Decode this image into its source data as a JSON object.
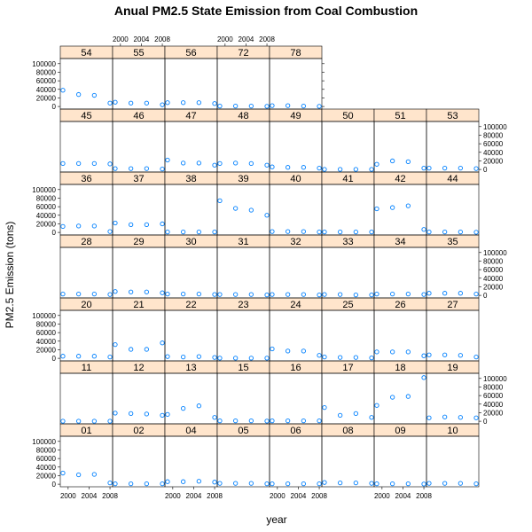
{
  "chart_data": {
    "type": "scatter",
    "title": "Anual PM2.5 State Emission from Coal Combustion",
    "xlabel": "year",
    "ylabel": "PM2.5 Emission (tons)",
    "x": [
      1999,
      2002,
      2005,
      2008
    ],
    "x_ticks": [
      2000,
      2004,
      2008
    ],
    "xlim": [
      1998.5,
      2008.5
    ],
    "y_ticks": [
      0,
      20000,
      40000,
      60000,
      80000,
      100000
    ],
    "ylim": [
      -6000,
      112000
    ],
    "colors": {
      "point": "#0080ff",
      "strip": "#ffe5cc"
    },
    "panels": [
      {
        "name": "01",
        "values": [
          26000,
          22000,
          23000,
          3000
        ]
      },
      {
        "name": "02",
        "values": [
          1000,
          1000,
          1000,
          1000
        ]
      },
      {
        "name": "04",
        "values": [
          6000,
          6000,
          7000,
          5000
        ]
      },
      {
        "name": "05",
        "values": [
          2000,
          2000,
          2000,
          1000
        ]
      },
      {
        "name": "06",
        "values": [
          1000,
          1000,
          1000,
          1000
        ]
      },
      {
        "name": "08",
        "values": [
          4000,
          3000,
          3000,
          2000
        ]
      },
      {
        "name": "09",
        "values": [
          1000,
          1000,
          1000,
          500
        ]
      },
      {
        "name": "10",
        "values": [
          2000,
          2000,
          2000,
          1000
        ]
      },
      {
        "name": "11",
        "values": [
          100,
          100,
          100,
          100
        ]
      },
      {
        "name": "12",
        "values": [
          19000,
          18000,
          17000,
          14000
        ]
      },
      {
        "name": "13",
        "values": [
          16000,
          30000,
          36000,
          9000
        ]
      },
      {
        "name": "15",
        "values": [
          1000,
          1000,
          1000,
          500
        ]
      },
      {
        "name": "16",
        "values": [
          1000,
          1000,
          1000,
          1000
        ]
      },
      {
        "name": "17",
        "values": [
          32000,
          14000,
          18000,
          9000
        ]
      },
      {
        "name": "18",
        "values": [
          37000,
          56000,
          58000,
          102000
        ]
      },
      {
        "name": "19",
        "values": [
          8000,
          10000,
          9000,
          8000
        ]
      },
      {
        "name": "20",
        "values": [
          5000,
          5000,
          5000,
          3000
        ]
      },
      {
        "name": "21",
        "values": [
          32000,
          21000,
          21000,
          36000
        ]
      },
      {
        "name": "22",
        "values": [
          4000,
          3000,
          4000,
          2000
        ]
      },
      {
        "name": "23",
        "values": [
          500,
          500,
          500,
          500
        ]
      },
      {
        "name": "24",
        "values": [
          22000,
          17000,
          17000,
          7000
        ]
      },
      {
        "name": "25",
        "values": [
          3000,
          2000,
          2000,
          1000
        ]
      },
      {
        "name": "26",
        "values": [
          15000,
          15000,
          15000,
          6000
        ]
      },
      {
        "name": "27",
        "values": [
          8000,
          8000,
          7000,
          3000
        ]
      },
      {
        "name": "28",
        "values": [
          3000,
          3000,
          3000,
          2000
        ]
      },
      {
        "name": "29",
        "values": [
          9000,
          8000,
          8000,
          6000
        ]
      },
      {
        "name": "30",
        "values": [
          3000,
          3000,
          3000,
          2000
        ]
      },
      {
        "name": "31",
        "values": [
          2000,
          2000,
          2000,
          1000
        ]
      },
      {
        "name": "32",
        "values": [
          2000,
          2000,
          2000,
          1000
        ]
      },
      {
        "name": "33",
        "values": [
          2000,
          2000,
          1000,
          1000
        ]
      },
      {
        "name": "34",
        "values": [
          3000,
          3000,
          3000,
          2000
        ]
      },
      {
        "name": "35",
        "values": [
          5000,
          5000,
          5000,
          3000
        ]
      },
      {
        "name": "36",
        "values": [
          14000,
          15000,
          15000,
          2000
        ]
      },
      {
        "name": "37",
        "values": [
          22000,
          18000,
          18000,
          20000
        ]
      },
      {
        "name": "38",
        "values": [
          1000,
          1000,
          1000,
          1000
        ]
      },
      {
        "name": "39",
        "values": [
          74000,
          56000,
          52000,
          40000
        ]
      },
      {
        "name": "40",
        "values": [
          2000,
          2000,
          2000,
          1000
        ]
      },
      {
        "name": "41",
        "values": [
          1000,
          1000,
          1000,
          1000
        ]
      },
      {
        "name": "42",
        "values": [
          55000,
          58000,
          62000,
          7000
        ]
      },
      {
        "name": "44",
        "values": [
          1000,
          1000,
          1000,
          500
        ]
      },
      {
        "name": "45",
        "values": [
          14000,
          14000,
          14000,
          13000
        ]
      },
      {
        "name": "46",
        "values": [
          2000,
          2000,
          2000,
          1000
        ]
      },
      {
        "name": "47",
        "values": [
          22000,
          15000,
          15000,
          10000
        ]
      },
      {
        "name": "48",
        "values": [
          14000,
          15000,
          14000,
          10000
        ]
      },
      {
        "name": "49",
        "values": [
          6000,
          5000,
          5000,
          3000
        ]
      },
      {
        "name": "50",
        "values": [
          100,
          100,
          100,
          100
        ]
      },
      {
        "name": "51",
        "values": [
          12000,
          20000,
          18000,
          3000
        ]
      },
      {
        "name": "53",
        "values": [
          3000,
          3000,
          3000,
          2000
        ]
      },
      {
        "name": "54",
        "values": [
          38000,
          28000,
          26000,
          8000
        ]
      },
      {
        "name": "55",
        "values": [
          10000,
          8000,
          8000,
          4000
        ]
      },
      {
        "name": "56",
        "values": [
          9000,
          9000,
          9000,
          7000
        ]
      },
      {
        "name": "72",
        "values": [
          1000,
          1000,
          1000,
          500
        ]
      },
      {
        "name": "78",
        "values": [
          2000,
          2000,
          1000,
          500
        ]
      }
    ]
  }
}
